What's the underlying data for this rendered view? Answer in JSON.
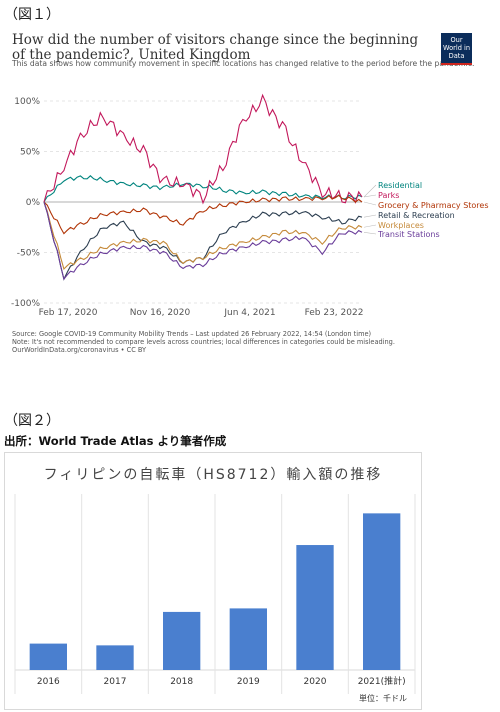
{
  "figure1": {
    "label": "（図１）",
    "title": "How did the number of visitors change since the beginning of the pandemic?, United Kingdom",
    "subtitle": "This data shows how community movement in specific locations has changed relative to the period before the pandemic.",
    "logo": "Our World in Data",
    "source_lines": [
      "Source: Google COVID-19 Community Mobility Trends – Last updated 26 February 2022, 14:54 (London time)",
      "Note: It's not recommended to compare levels across countries; local differences in categories could be misleading.",
      "OurWorldInData.org/coronavirus • CC BY"
    ],
    "chart_data": {
      "type": "line",
      "title": "How did the number of visitors change since the beginning of the pandemic?, United Kingdom",
      "x_ticks": [
        "Feb 17, 2020",
        "Nov 16, 2020",
        "Jun 4, 2021",
        "Feb 23, 2022"
      ],
      "y_ticks": [
        "100%",
        "50%",
        "0%",
        "-50%",
        "-100%"
      ],
      "ylim": [
        -100,
        120
      ],
      "grid": true,
      "legend_placement": "right",
      "series": [
        {
          "name": "Residential",
          "color": "#00847e",
          "values": [
            0,
            22,
            25,
            22,
            18,
            16,
            14,
            18,
            16,
            12,
            9,
            10,
            8,
            6,
            5,
            5,
            5
          ]
        },
        {
          "name": "Parks",
          "color": "#c2185b",
          "values": [
            0,
            35,
            70,
            85,
            65,
            50,
            20,
            18,
            5,
            35,
            80,
            100,
            75,
            40,
            10,
            5,
            5
          ]
        },
        {
          "name": "Grocery & Pharmacy Stores",
          "color": "#b13507",
          "values": [
            0,
            -30,
            -20,
            -12,
            -10,
            -8,
            -15,
            -22,
            -8,
            -3,
            0,
            2,
            3,
            3,
            4,
            5,
            0
          ]
        },
        {
          "name": "Retail & Recreation",
          "color": "#2c3e50",
          "values": [
            0,
            -75,
            -45,
            -25,
            -20,
            -40,
            -45,
            -60,
            -55,
            -30,
            -20,
            -12,
            -12,
            -10,
            -15,
            -20,
            -15
          ]
        },
        {
          "name": "Workplaces",
          "color": "#c58a3a",
          "values": [
            0,
            -65,
            -55,
            -45,
            -40,
            -38,
            -40,
            -60,
            -55,
            -45,
            -40,
            -35,
            -30,
            -30,
            -40,
            -25,
            -25
          ]
        },
        {
          "name": "Transit Stations",
          "color": "#6a3d9a",
          "values": [
            0,
            -75,
            -60,
            -50,
            -45,
            -45,
            -50,
            -65,
            -62,
            -50,
            -45,
            -40,
            -38,
            -35,
            -50,
            -30,
            -30
          ]
        }
      ]
    }
  },
  "figure2": {
    "label": "（図２）",
    "source": "出所：World Trade Atlas より筆者作成",
    "unit": "単位：千ドル",
    "chart_data": {
      "type": "bar",
      "title": "フィリピンの自転車（HS8712）輸入額の推移",
      "categories": [
        "2016",
        "2017",
        "2018",
        "2019",
        "2020",
        "2021(推計)"
      ],
      "values": [
        15,
        14,
        33,
        35,
        71,
        89
      ],
      "ylim": [
        0,
        100
      ],
      "color": "#4a7fcf",
      "grid": false
    }
  }
}
